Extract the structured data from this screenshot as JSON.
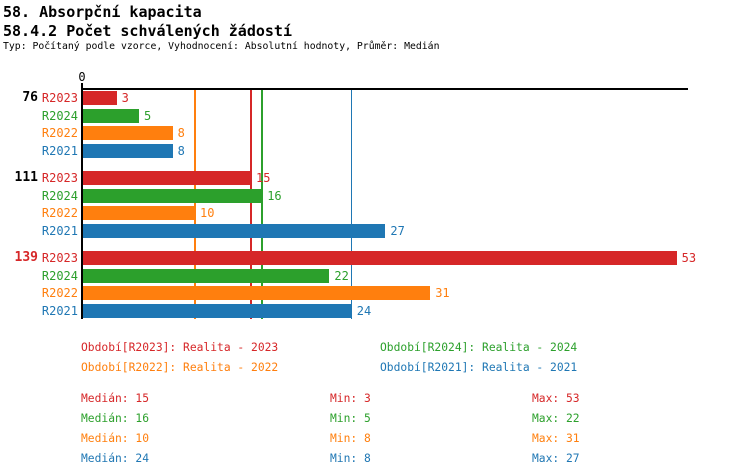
{
  "header": {
    "title": "58. Absorpční kapacita",
    "subtitle": "58.4.2 Počet schválených žádostí",
    "meta": "Typ: Počítaný podle vzorce, Vyhodnocení: Absolutní hodnoty, Průměr: Medián"
  },
  "colors": {
    "R2023": "#d62728",
    "R2024": "#2ca02c",
    "R2022": "#ff7f0e",
    "R2021": "#1f77b4",
    "axis": "#000000"
  },
  "chart_data": {
    "type": "bar",
    "orientation": "horizontal",
    "x_axis": {
      "origin_tick_label": "0",
      "min": 0,
      "max": 54
    },
    "series_order": [
      "R2023",
      "R2024",
      "R2022",
      "R2021"
    ],
    "groups": [
      {
        "label": "76",
        "label_color": "#000000",
        "values": {
          "R2023": 3,
          "R2024": 5,
          "R2022": 8,
          "R2021": 8
        }
      },
      {
        "label": "111",
        "label_color": "#000000",
        "values": {
          "R2023": 15,
          "R2024": 16,
          "R2022": 10,
          "R2021": 27
        }
      },
      {
        "label": "139",
        "label_color": "#d62728",
        "values": {
          "R2023": 53,
          "R2024": 22,
          "R2022": 31,
          "R2021": 24
        }
      }
    ],
    "median_lines": [
      {
        "series": "R2022",
        "value": 10
      },
      {
        "series": "R2023",
        "value": 15
      },
      {
        "series": "R2024",
        "value": 16
      },
      {
        "series": "R2021",
        "value": 24
      }
    ],
    "legend": [
      {
        "series": "R2023",
        "label": "Období[R2023]: Realita - 2023"
      },
      {
        "series": "R2024",
        "label": "Období[R2024]: Realita - 2024"
      },
      {
        "series": "R2022",
        "label": "Období[R2022]: Realita - 2022"
      },
      {
        "series": "R2021",
        "label": "Období[R2021]: Realita - 2021"
      }
    ],
    "stats": [
      {
        "series": "R2023",
        "median": "Medián: 15",
        "min": "Min: 3",
        "max": "Max: 53"
      },
      {
        "series": "R2024",
        "median": "Medián: 16",
        "min": "Min: 5",
        "max": "Max: 22"
      },
      {
        "series": "R2022",
        "median": "Medián: 10",
        "min": "Min: 8",
        "max": "Max: 31"
      },
      {
        "series": "R2021",
        "median": "Medián: 24",
        "min": "Min: 8",
        "max": "Max: 27"
      }
    ]
  }
}
